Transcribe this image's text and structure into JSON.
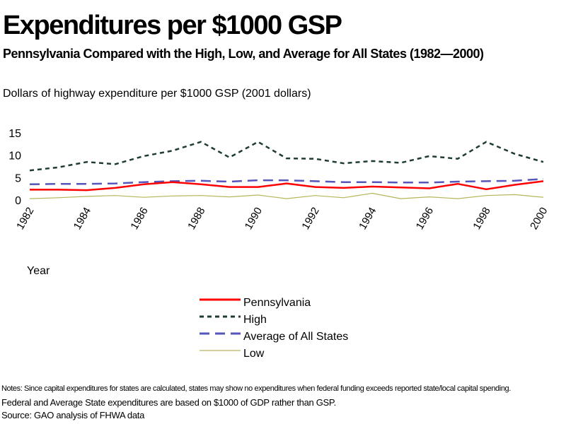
{
  "title": "Expenditures per $1000 GSP",
  "subtitle": "Pennsylvania Compared with the High, Low, and Average for All States (1982—2000)",
  "notes": {
    "line1": "Notes: Since capital expenditures for states are calculated, states may show no expenditures when federal funding exceeds reported state/local capital spending.",
    "line2": "Federal and Average State expenditures are based on $1000 of GDP rather than GSP.",
    "source": "Source: GAO  analysis of FHWA data"
  },
  "chart_data": {
    "type": "line",
    "title": "Expenditures per $1000 GSP",
    "ylabel": "Dollars of highway expenditure per $1000 GSP  (2001 dollars)",
    "xlabel": "Year",
    "ylim": [
      0,
      15
    ],
    "yticks": [
      "15",
      "10",
      "5",
      "0"
    ],
    "grid": false,
    "legend_position": "bottom-center",
    "x": [
      1982,
      1983,
      1984,
      1985,
      1986,
      1987,
      1988,
      1989,
      1990,
      1991,
      1992,
      1993,
      1994,
      1995,
      1996,
      1997,
      1998,
      1999,
      2000
    ],
    "xtick_labels": [
      "1982",
      "1984",
      "1986",
      "1988",
      "1990",
      "1992",
      "1994",
      "1996",
      "1998",
      "2000"
    ],
    "series": [
      {
        "name": "Pennsylvania",
        "color": "#ff0000",
        "style": "solid",
        "values": [
          2.3,
          2.3,
          2.2,
          2.7,
          3.5,
          4.0,
          3.5,
          2.9,
          2.9,
          3.7,
          2.9,
          2.7,
          3.0,
          2.8,
          2.6,
          3.6,
          2.4,
          3.4,
          4.2
        ]
      },
      {
        "name": "High",
        "color": "#1f3d2e",
        "style": "dotted",
        "values": [
          6.6,
          7.3,
          8.5,
          8.0,
          9.8,
          11.0,
          13.0,
          9.5,
          13.0,
          9.3,
          9.2,
          8.2,
          8.7,
          8.3,
          9.8,
          9.2,
          13.0,
          10.3,
          8.5
        ]
      },
      {
        "name": "Average of All States",
        "color": "#5555bb",
        "style": "dashed",
        "values": [
          3.5,
          3.6,
          3.6,
          3.7,
          4.0,
          4.2,
          4.3,
          4.1,
          4.4,
          4.4,
          4.2,
          4.0,
          4.0,
          3.9,
          3.9,
          4.1,
          4.2,
          4.3,
          4.7
        ]
      },
      {
        "name": "Low",
        "color": "#b5b55a",
        "style": "solid",
        "values": [
          0.3,
          0.5,
          0.8,
          1.0,
          0.6,
          0.9,
          1.0,
          0.7,
          1.1,
          0.3,
          1.0,
          0.5,
          1.5,
          0.3,
          0.7,
          0.3,
          1.0,
          1.2,
          0.6
        ]
      }
    ]
  }
}
